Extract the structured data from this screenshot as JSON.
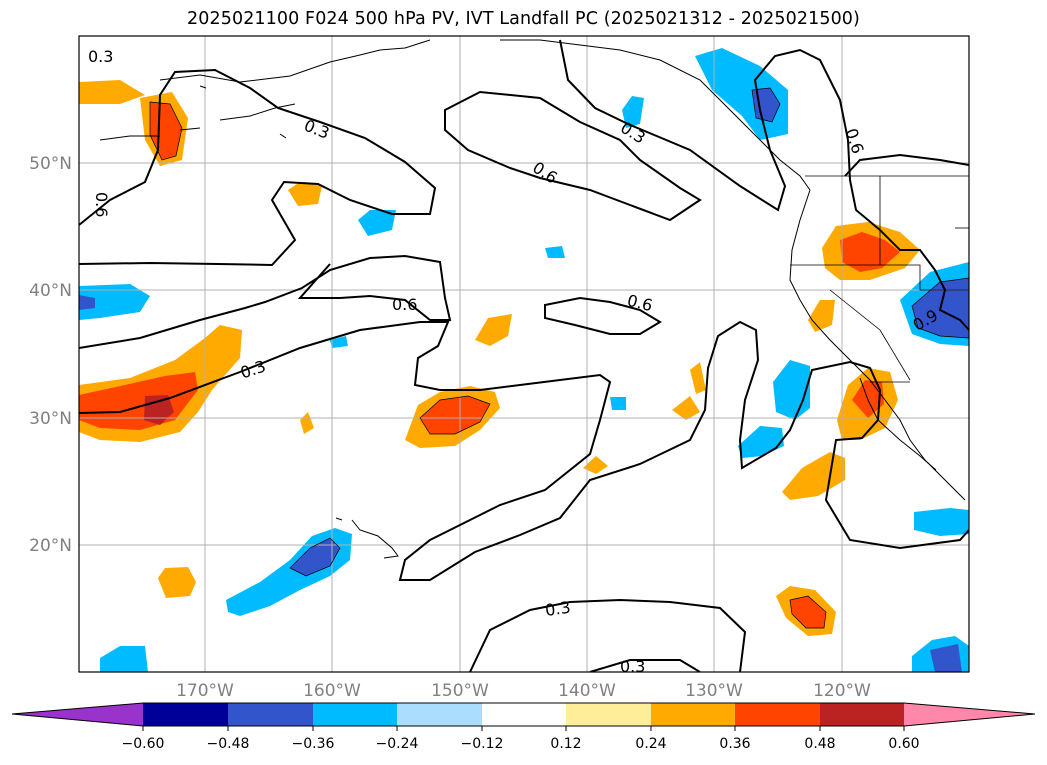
{
  "title": "2025021100 F024 500 hPa PV, IVT Landfall PC (2025021312 - 2025021500)",
  "map": {
    "lon_labels": [
      "170°W",
      "160°W",
      "150°W",
      "140°W",
      "130°W",
      "120°W"
    ],
    "lat_labels": [
      "50°N",
      "40°N",
      "30°N",
      "20°N"
    ],
    "contour_labels": [
      "0.3",
      "0.3",
      "0.6",
      "0.6",
      "0.6",
      "0.6",
      "0.3",
      "0.6",
      "0.3",
      "0.3",
      "0.3",
      "0.9"
    ]
  },
  "colorbar": {
    "colors": [
      "#9933cc",
      "#000099",
      "#3355cc",
      "#00bbff",
      "#aaddff",
      "#ffffff",
      "#ffee99",
      "#ffaa00",
      "#ff4400",
      "#bb2222",
      "#ff88aa"
    ],
    "tick_labels": [
      "−0.60",
      "−0.48",
      "−0.36",
      "−0.24",
      "−0.12",
      "0.12",
      "0.24",
      "0.36",
      "0.48",
      "0.60"
    ]
  }
}
